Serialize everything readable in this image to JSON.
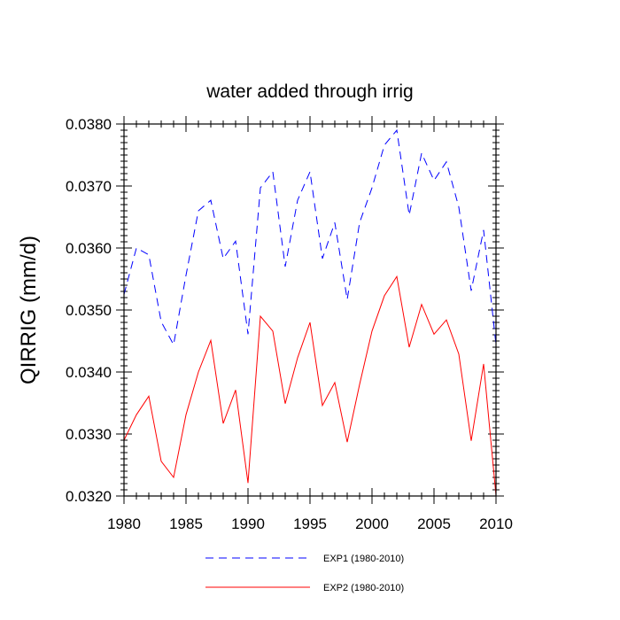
{
  "chart_data": {
    "type": "line",
    "title": "water added through irrig",
    "xlabel": "",
    "ylabel": "QIRRIG  (mm/d)",
    "xlim": [
      1980,
      2010
    ],
    "ylim": [
      0.032,
      0.038
    ],
    "xticks": [
      1980,
      1985,
      1990,
      1995,
      2000,
      2005,
      2010
    ],
    "xtick_labels": [
      "1980",
      "1985",
      "1990",
      "1995",
      "2000",
      "2005",
      "2010"
    ],
    "yticks": [
      0.032,
      0.033,
      0.034,
      0.035,
      0.036,
      0.037,
      0.038
    ],
    "ytick_labels": [
      "0.0320",
      "0.0330",
      "0.0340",
      "0.0350",
      "0.0360",
      "0.0370",
      "0.0380"
    ],
    "legend_position": "bottom-center",
    "x": [
      1980,
      1981,
      1982,
      1983,
      1984,
      1985,
      1986,
      1987,
      1988,
      1989,
      1990,
      1991,
      1992,
      1993,
      1994,
      1995,
      1996,
      1997,
      1998,
      1999,
      2000,
      2001,
      2002,
      2003,
      2004,
      2005,
      2006,
      2007,
      2008,
      2009,
      2010
    ],
    "series": [
      {
        "name": "EXP1 (1980-2010)",
        "color": "#0000ff",
        "style": "dashed",
        "values": [
          0.03525,
          0.036,
          0.03589,
          0.03481,
          0.03444,
          0.03556,
          0.0366,
          0.03677,
          0.03583,
          0.03611,
          0.03461,
          0.03697,
          0.03723,
          0.0357,
          0.03677,
          0.03723,
          0.03583,
          0.03641,
          0.03517,
          0.03641,
          0.03697,
          0.03766,
          0.0379,
          0.03653,
          0.03753,
          0.03709,
          0.03739,
          0.03666,
          0.03531,
          0.03629,
          0.03444
        ]
      },
      {
        "name": "EXP2 (1980-2010)",
        "color": "#ff0000",
        "style": "solid",
        "values": [
          0.0329,
          0.03331,
          0.03361,
          0.03256,
          0.0323,
          0.03331,
          0.034,
          0.03451,
          0.03317,
          0.03371,
          0.03221,
          0.0349,
          0.03466,
          0.03349,
          0.03423,
          0.0348,
          0.03346,
          0.03383,
          0.03287,
          0.0338,
          0.03466,
          0.03523,
          0.03554,
          0.0344,
          0.03509,
          0.03461,
          0.03484,
          0.03429,
          0.03289,
          0.03413,
          0.03201
        ]
      }
    ]
  }
}
